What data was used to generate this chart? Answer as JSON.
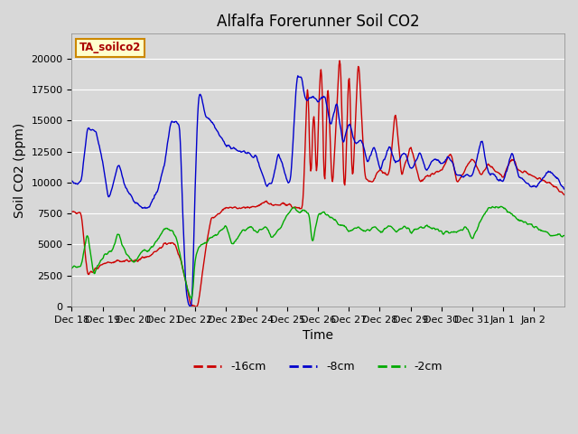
{
  "title": "Alfalfa Forerunner Soil CO2",
  "xlabel": "Time",
  "ylabel": "Soil CO2 (ppm)",
  "legend_label": "TA_soilco2",
  "ylim": [
    0,
    22000
  ],
  "series_labels": [
    "-16cm",
    "-8cm",
    "-2cm"
  ],
  "series_colors": [
    "#cc0000",
    "#0000cc",
    "#00aa00"
  ],
  "x_tick_labels": [
    "Dec 18",
    "Dec 19",
    "Dec 20",
    "Dec 21",
    "Dec 22",
    "Dec 23",
    "Dec 24",
    "Dec 25",
    "Dec 26",
    "Dec 27",
    "Dec 28",
    "Dec 29",
    "Dec 30",
    "Dec 31",
    "Jan 1",
    "Jan 2"
  ],
  "background_color": "#d8d8d8",
  "plot_bg_color": "#d8d8d8",
  "grid_color": "#ffffff",
  "title_fontsize": 12,
  "axis_fontsize": 10,
  "tick_fontsize": 8
}
